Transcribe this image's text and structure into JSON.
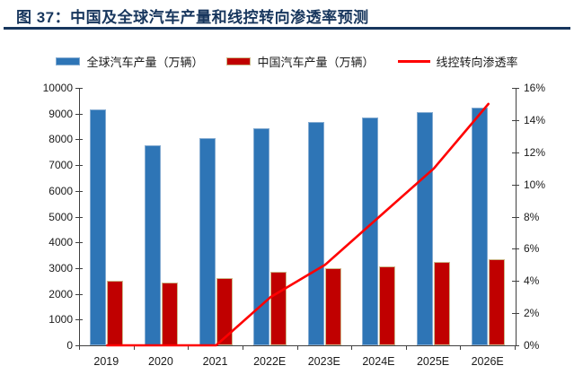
{
  "figure": {
    "title": "图 37：中国及全球汽车产量和线控转向渗透率预测"
  },
  "colors": {
    "title_navy": "#17365D",
    "global_bar_blue": "#2E75B6",
    "global_bar_edge": "#84ABD1",
    "china_bar_red": "#C00000",
    "china_bar_edge": "#CDB98C",
    "penetration_line_red": "#FF0000",
    "axis_line": "#404040",
    "axis_text": "#1A1A1A"
  },
  "chart_data": {
    "type": "bar",
    "title": "图 37：中国及全球汽车产量和线控转向渗透率预测",
    "categories": [
      "2019",
      "2020",
      "2021",
      "2022E",
      "2023E",
      "2024E",
      "2025E",
      "2026E"
    ],
    "series": [
      {
        "name": "全球汽车产量（万辆）",
        "kind": "bar",
        "axis": "left",
        "color": "#2E75B6",
        "edge_color": "#84ABD1",
        "values": [
          9180,
          7780,
          8060,
          8440,
          8670,
          8860,
          9050,
          9230
        ]
      },
      {
        "name": "中国汽车产量（万辆）",
        "kind": "bar",
        "axis": "left",
        "color": "#C00000",
        "edge_color": "#CDB98C",
        "values": [
          2520,
          2430,
          2630,
          2850,
          3000,
          3080,
          3230,
          3350
        ]
      },
      {
        "name": "线控转向渗透率",
        "kind": "line",
        "axis": "right",
        "color": "#FF0000",
        "unit": "%",
        "values": [
          0,
          0,
          0,
          3,
          5,
          8,
          11,
          15
        ]
      }
    ],
    "left_axis": {
      "min": 0,
      "max": 10000,
      "step": 1000,
      "tick_labels": [
        "0",
        "1000",
        "2000",
        "3000",
        "4000",
        "5000",
        "6000",
        "7000",
        "8000",
        "9000",
        "10000"
      ]
    },
    "right_axis": {
      "min": 0,
      "max": 16,
      "step": 2,
      "suffix": "%",
      "tick_labels": [
        "0%",
        "2%",
        "4%",
        "6%",
        "8%",
        "10%",
        "12%",
        "14%",
        "16%"
      ]
    },
    "legend_position": "top",
    "grid": false
  }
}
